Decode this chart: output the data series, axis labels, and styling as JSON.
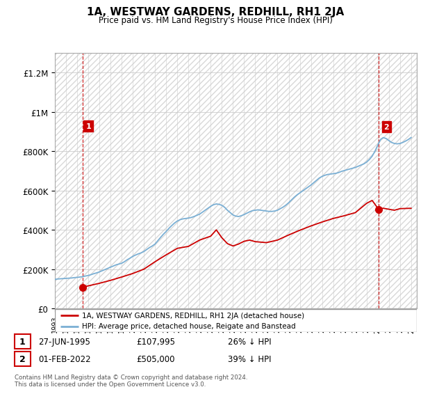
{
  "title": "1A, WESTWAY GARDENS, REDHILL, RH1 2JA",
  "subtitle": "Price paid vs. HM Land Registry's House Price Index (HPI)",
  "legend_line1": "1A, WESTWAY GARDENS, REDHILL, RH1 2JA (detached house)",
  "legend_line2": "HPI: Average price, detached house, Reigate and Banstead",
  "footnote": "Contains HM Land Registry data © Crown copyright and database right 2024.\nThis data is licensed under the Open Government Licence v3.0.",
  "annotation1": {
    "label": "1",
    "date": "27-JUN-1995",
    "price": "£107,995",
    "pct": "26% ↓ HPI"
  },
  "annotation2": {
    "label": "2",
    "date": "01-FEB-2022",
    "price": "£505,000",
    "pct": "39% ↓ HPI"
  },
  "red_color": "#cc0000",
  "blue_color": "#7aafd4",
  "ylim": [
    0,
    1300000
  ],
  "yticks": [
    0,
    200000,
    400000,
    600000,
    800000,
    1000000,
    1200000
  ],
  "ytick_labels": [
    "£0",
    "£200K",
    "£400K",
    "£600K",
    "£800K",
    "£1M",
    "£1.2M"
  ],
  "hpi_x": [
    1993.0,
    1993.25,
    1993.5,
    1993.75,
    1994.0,
    1994.25,
    1994.5,
    1994.75,
    1995.0,
    1995.25,
    1995.5,
    1995.75,
    1996.0,
    1996.25,
    1996.5,
    1996.75,
    1997.0,
    1997.25,
    1997.5,
    1997.75,
    1998.0,
    1998.25,
    1998.5,
    1998.75,
    1999.0,
    1999.25,
    1999.5,
    1999.75,
    2000.0,
    2000.25,
    2000.5,
    2000.75,
    2001.0,
    2001.25,
    2001.5,
    2001.75,
    2002.0,
    2002.25,
    2002.5,
    2002.75,
    2003.0,
    2003.25,
    2003.5,
    2003.75,
    2004.0,
    2004.25,
    2004.5,
    2004.75,
    2005.0,
    2005.25,
    2005.5,
    2005.75,
    2006.0,
    2006.25,
    2006.5,
    2006.75,
    2007.0,
    2007.25,
    2007.5,
    2007.75,
    2008.0,
    2008.25,
    2008.5,
    2008.75,
    2009.0,
    2009.25,
    2009.5,
    2009.75,
    2010.0,
    2010.25,
    2010.5,
    2010.75,
    2011.0,
    2011.25,
    2011.5,
    2011.75,
    2012.0,
    2012.25,
    2012.5,
    2012.75,
    2013.0,
    2013.25,
    2013.5,
    2013.75,
    2014.0,
    2014.25,
    2014.5,
    2014.75,
    2015.0,
    2015.25,
    2015.5,
    2015.75,
    2016.0,
    2016.25,
    2016.5,
    2016.75,
    2017.0,
    2017.25,
    2017.5,
    2017.75,
    2018.0,
    2018.25,
    2018.5,
    2018.75,
    2019.0,
    2019.25,
    2019.5,
    2019.75,
    2020.0,
    2020.25,
    2020.5,
    2020.75,
    2021.0,
    2021.25,
    2021.5,
    2021.75,
    2022.0,
    2022.25,
    2022.5,
    2022.75,
    2023.0,
    2023.25,
    2023.5,
    2023.75,
    2024.0,
    2024.25,
    2024.5,
    2024.75,
    2025.0
  ],
  "hpi_y": [
    148000,
    150000,
    151000,
    152000,
    153000,
    154000,
    155000,
    157000,
    158000,
    160000,
    162000,
    165000,
    168000,
    172000,
    177000,
    181000,
    186000,
    192000,
    198000,
    204000,
    210000,
    216000,
    222000,
    226000,
    230000,
    238000,
    248000,
    256000,
    265000,
    272000,
    278000,
    283000,
    290000,
    300000,
    310000,
    318000,
    328000,
    345000,
    362000,
    378000,
    392000,
    408000,
    422000,
    435000,
    445000,
    452000,
    456000,
    458000,
    460000,
    463000,
    468000,
    474000,
    480000,
    490000,
    500000,
    510000,
    520000,
    528000,
    532000,
    530000,
    525000,
    515000,
    500000,
    488000,
    476000,
    470000,
    468000,
    472000,
    478000,
    485000,
    492000,
    498000,
    500000,
    502000,
    500000,
    498000,
    496000,
    494000,
    494000,
    496000,
    500000,
    508000,
    516000,
    526000,
    538000,
    552000,
    566000,
    578000,
    588000,
    598000,
    608000,
    618000,
    628000,
    640000,
    652000,
    664000,
    672000,
    678000,
    682000,
    684000,
    686000,
    688000,
    692000,
    698000,
    702000,
    706000,
    710000,
    714000,
    718000,
    724000,
    730000,
    736000,
    745000,
    758000,
    775000,
    800000,
    830000,
    860000,
    870000,
    865000,
    855000,
    845000,
    840000,
    838000,
    840000,
    845000,
    852000,
    860000,
    870000
  ],
  "red_x": [
    1995.5,
    1996.0,
    1997.0,
    1998.0,
    1999.0,
    2000.0,
    2001.0,
    2002.0,
    2003.0,
    2004.0,
    2005.0,
    2006.0,
    2007.0,
    2007.5,
    2008.0,
    2008.5,
    2009.0,
    2009.5,
    2010.0,
    2010.5,
    2011.0,
    2012.0,
    2013.0,
    2014.0,
    2015.0,
    2016.0,
    2017.0,
    2018.0,
    2019.0,
    2020.0,
    2021.0,
    2021.5,
    2022.08,
    2022.5,
    2023.0,
    2023.5,
    2024.0,
    2025.0
  ],
  "red_y": [
    107995,
    115000,
    128000,
    143000,
    160000,
    178000,
    200000,
    238000,
    273000,
    306000,
    316000,
    348000,
    368000,
    400000,
    360000,
    330000,
    318000,
    328000,
    342000,
    348000,
    340000,
    335000,
    348000,
    374000,
    398000,
    420000,
    440000,
    458000,
    472000,
    488000,
    535000,
    550000,
    505000,
    510000,
    505000,
    500000,
    508000,
    510000
  ],
  "sale1_x": 1995.5,
  "sale1_y": 107995,
  "sale2_x": 2022.08,
  "sale2_y": 505000,
  "xlim_start": 1993,
  "xlim_end": 2025.5,
  "hatch_color": "#d8d8d8",
  "grid_color": "#cccccc",
  "spine_color": "#aaaaaa"
}
